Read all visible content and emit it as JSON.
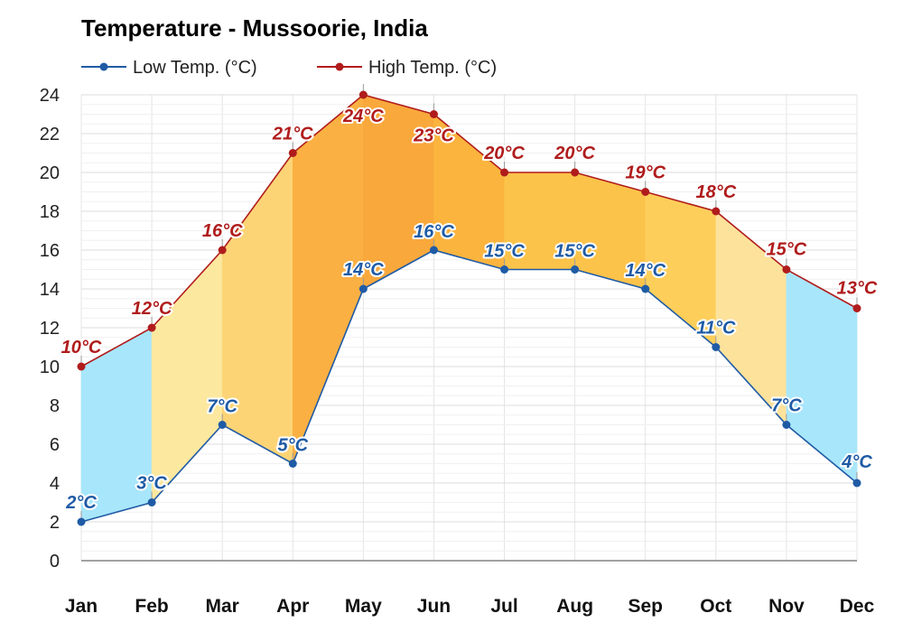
{
  "chart_data": {
    "type": "line",
    "title": "Temperature - Mussoorie, India",
    "categories": [
      "Jan",
      "Feb",
      "Mar",
      "Apr",
      "May",
      "Jun",
      "Jul",
      "Aug",
      "Sep",
      "Oct",
      "Nov",
      "Dec"
    ],
    "series": [
      {
        "name": "Low Temp. (°C)",
        "color": "#1f5ba5",
        "values": [
          2,
          3,
          7,
          5,
          14,
          16,
          15,
          15,
          14,
          11,
          7,
          4
        ],
        "labels": [
          "2°C",
          "3°C",
          "7°C",
          "5°C",
          "14°C",
          "16°C",
          "15°C",
          "15°C",
          "14°C",
          "11°C",
          "7°C",
          "4°C"
        ]
      },
      {
        "name": "High Temp. (°C)",
        "color": "#b01c1c",
        "values": [
          10,
          12,
          16,
          21,
          24,
          23,
          20,
          20,
          19,
          18,
          15,
          13
        ],
        "labels": [
          "10°C",
          "12°C",
          "16°C",
          "21°C",
          "24°C",
          "23°C",
          "20°C",
          "20°C",
          "19°C",
          "18°C",
          "15°C",
          "13°C"
        ]
      }
    ],
    "band_fill_colors": [
      "#a8e6fb",
      "#fde8a0",
      "#fcd476",
      "#fab043",
      "#f9a83c",
      "#fbb43e",
      "#fcc34a",
      "#fcc34a",
      "#fdce5a",
      "#fde29c",
      "#a8e6fb",
      "#a8e6fb"
    ],
    "yticks": [
      "0",
      "2",
      "4",
      "6",
      "8",
      "10",
      "12",
      "14",
      "16",
      "18",
      "20",
      "22",
      "24"
    ],
    "ylim": [
      0,
      24
    ],
    "grid": true,
    "legend_position": "top-left"
  }
}
